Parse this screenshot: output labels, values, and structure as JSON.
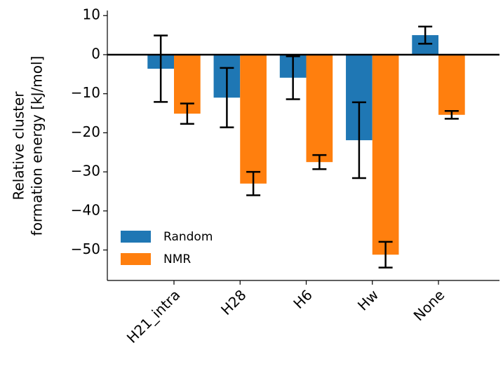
{
  "chart_data": {
    "type": "bar",
    "ylabel": [
      "Relative cluster",
      "formation energy [kJ/mol]"
    ],
    "categories": [
      "H21_intra",
      "H28",
      "H6",
      "Hw",
      "None"
    ],
    "series": [
      {
        "name": "Random",
        "color": "#1f77b4",
        "values": [
          -3.6,
          -11.0,
          -5.9,
          -21.9,
          5.0
        ],
        "errors": [
          8.5,
          7.6,
          5.5,
          9.7,
          2.2
        ]
      },
      {
        "name": "NMR",
        "color": "#ff7f0e",
        "values": [
          -15.1,
          -33.0,
          -27.5,
          -51.2,
          -15.4
        ],
        "errors": [
          2.6,
          3.0,
          1.8,
          3.3,
          1.0
        ]
      }
    ],
    "ylim": [
      -57.8,
      11.3
    ],
    "yticks": [
      10,
      0,
      {
        "value": -10,
        "label": "−10"
      },
      {
        "value": -20,
        "label": "−20"
      },
      {
        "value": -30,
        "label": "−30"
      },
      {
        "value": -40,
        "label": "−40"
      },
      {
        "value": -50,
        "label": "−50"
      }
    ],
    "legend": "lower left",
    "grid": false
  }
}
